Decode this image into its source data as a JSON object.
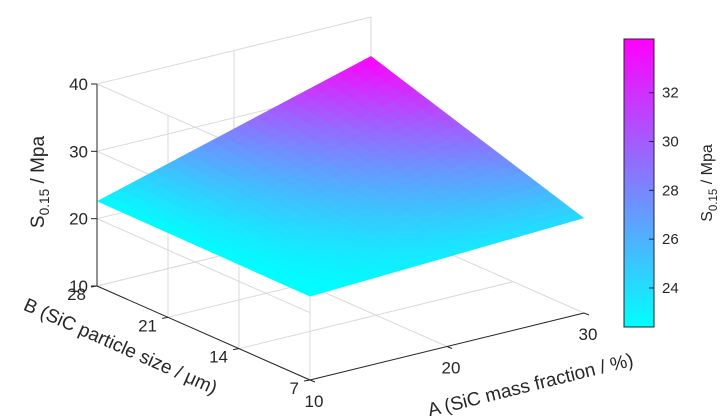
{
  "chart_data": {
    "type": "surface",
    "x": {
      "label": "A (SiC mass fraction / %)",
      "range": [
        10,
        30
      ],
      "ticks": [
        {
          "value": 10,
          "label": "10"
        },
        {
          "value": 20,
          "label": "20"
        },
        {
          "value": 30,
          "label": "30"
        }
      ]
    },
    "y": {
      "label": "B (SiC particle size / μm)",
      "range": [
        7,
        28
      ],
      "ticks": [
        {
          "value": 7,
          "label": "7"
        },
        {
          "value": 14,
          "label": "14"
        },
        {
          "value": 21,
          "label": "21"
        },
        {
          "value": 28,
          "label": "28"
        }
      ]
    },
    "z": {
      "label_main": "S",
      "label_sub": "0.15",
      "label_rest": " / Mpa",
      "range": [
        10,
        40
      ],
      "ticks": [
        {
          "value": 10,
          "label": "10"
        },
        {
          "value": 20,
          "label": "20"
        },
        {
          "value": 30,
          "label": "30"
        },
        {
          "value": 40,
          "label": "40"
        }
      ]
    },
    "surface_corners": [
      {
        "x": 10,
        "y": 7,
        "z": 22.4
      },
      {
        "x": 30,
        "y": 7,
        "z": 24.1
      },
      {
        "x": 30,
        "y": 28,
        "z": 34.2
      },
      {
        "x": 10,
        "y": 28,
        "z": 22.6
      }
    ],
    "colorbar": {
      "label_main": "S",
      "label_sub": "0.15",
      "label_rest": " / Mpa",
      "range": [
        22.4,
        34.2
      ],
      "ticks": [
        {
          "value": 24,
          "label": "24"
        },
        {
          "value": 26,
          "label": "26"
        },
        {
          "value": 28,
          "label": "28"
        },
        {
          "value": 30,
          "label": "30"
        },
        {
          "value": 32,
          "label": "32"
        }
      ],
      "color_low": "#00ffff",
      "color_high": "#ff00ff"
    },
    "grid": true
  }
}
